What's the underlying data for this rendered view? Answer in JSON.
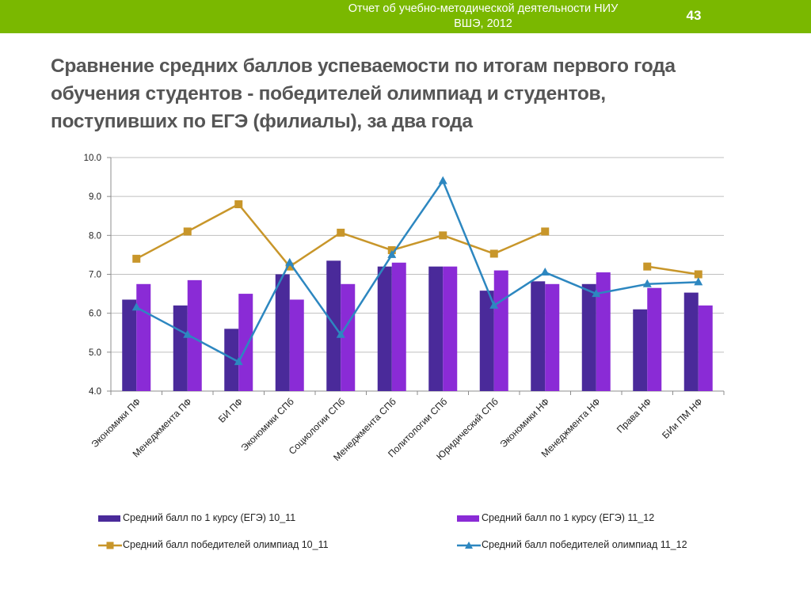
{
  "header": {
    "line1": "Отчет об учебно-методической деятельности НИУ",
    "line2": "ВШЭ, 2012",
    "page_number": "43"
  },
  "title": {
    "line1": "Сравнение средних баллов успеваемости по итогам первого года",
    "line2": "обучения студентов - победителей олимпиад и студентов,",
    "line3": "поступивших по ЕГЭ (филиалы), за два года"
  },
  "colors": {
    "accent_bar": "#7ab800",
    "bar_10_11": "#4a2a9a",
    "bar_11_12": "#8a2bd6",
    "olymp_10_11": "#c8962a",
    "olymp_11_12": "#2d87c0"
  },
  "chart_data": {
    "type": "bar",
    "categories": [
      "Экономики ПФ",
      "Менеджмента ПФ",
      "БИ ПФ",
      "Экономики СПб",
      "Социологии СПб",
      "Менеджмента СПб",
      "Политологии СПб",
      "Юридический СПб",
      "Экономики НФ",
      "Менеджмента НФ",
      "Права НФ",
      "БИи ПМ НФ"
    ],
    "ylim": [
      4.0,
      10.0
    ],
    "yticks": [
      "4.0",
      "5.0",
      "6.0",
      "7.0",
      "8.0",
      "9.0",
      "10.0"
    ],
    "grid": true,
    "legend_position": "bottom",
    "series": [
      {
        "name": "Средний балл по 1 курсу (ЕГЭ) 10_11",
        "kind": "bar",
        "values": [
          6.35,
          6.2,
          5.6,
          7.0,
          7.35,
          7.2,
          7.2,
          6.58,
          6.82,
          6.75,
          6.1,
          6.53
        ]
      },
      {
        "name": "Средний балл по 1 курсу (ЕГЭ) 11_12",
        "kind": "bar",
        "values": [
          6.75,
          6.85,
          6.5,
          6.35,
          6.75,
          7.3,
          7.2,
          7.1,
          6.75,
          7.05,
          6.65,
          6.2
        ]
      },
      {
        "name": "Средний балл победителей олимпиад 10_11",
        "kind": "line",
        "marker": "square",
        "values": [
          7.4,
          8.1,
          8.8,
          7.2,
          8.07,
          7.62,
          8.0,
          7.53,
          8.1,
          null,
          7.2,
          7.0
        ]
      },
      {
        "name": "Средний балл победителей олимпиад 11_12",
        "kind": "line",
        "marker": "triangle",
        "values": [
          6.15,
          5.45,
          4.75,
          7.3,
          5.45,
          7.5,
          9.4,
          6.2,
          7.05,
          6.5,
          6.75,
          6.8
        ]
      }
    ]
  }
}
